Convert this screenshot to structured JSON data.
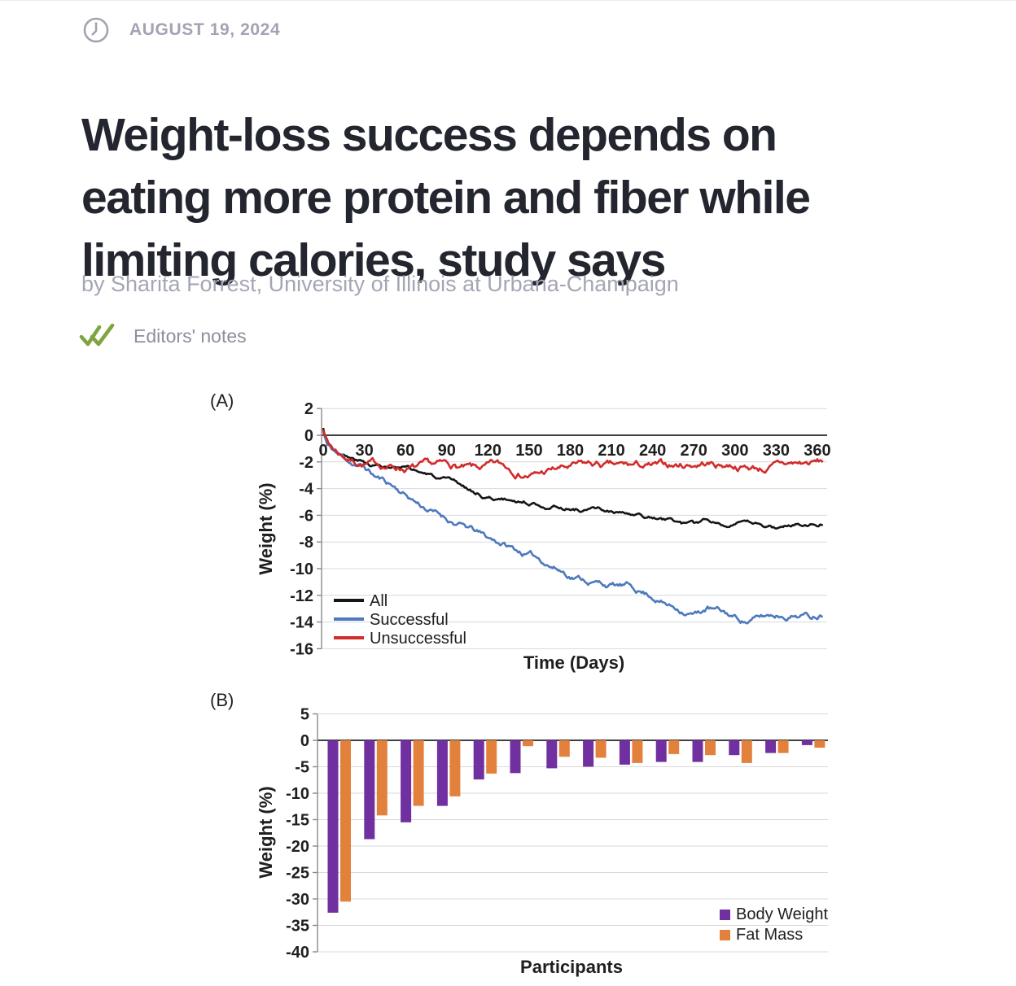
{
  "page": {
    "date": "AUGUST 19, 2024",
    "headline_lines": [
      "Weight-loss success depends on",
      "eating more protein and fiber while",
      "limiting calories, study says"
    ],
    "byline": "by Sharita Forrest, University of Illinois at Urbana-Champaign",
    "editors_notes_label": "Editors' notes"
  },
  "colors": {
    "date_gray": "#a2a3b3",
    "headline": "#23252f",
    "byline_gray": "#a5a6b5",
    "editors_gray": "#8e8f9c",
    "check_green": "#7fa440",
    "gridline": "#d9d9d9",
    "axis_gray": "#8a8a8a",
    "zero_line": "#404040",
    "chart_text": "#1f1f1f"
  },
  "chart_data": [
    {
      "panel": "(A)",
      "type": "line",
      "xlabel": "Time (Days)",
      "ylabel": "Weight (%)",
      "xlim": [
        0,
        364
      ],
      "ylim": [
        -16,
        2
      ],
      "x_ticks": [
        0,
        30,
        60,
        90,
        120,
        150,
        180,
        210,
        240,
        270,
        300,
        330,
        360
      ],
      "y_ticks": [
        2,
        0,
        -2,
        -4,
        -6,
        -8,
        -10,
        -12,
        -14,
        -16
      ],
      "grid": true,
      "legend_position": "bottom-left",
      "series": [
        {
          "name": "All",
          "color": "#151515",
          "noise": 0.12,
          "seed": 3,
          "anchors": [
            [
              0,
              0.5
            ],
            [
              2,
              -0.3
            ],
            [
              8,
              -1.0
            ],
            [
              20,
              -1.7
            ],
            [
              30,
              -2.1
            ],
            [
              45,
              -2.4
            ],
            [
              60,
              -2.7
            ],
            [
              75,
              -3.0
            ],
            [
              90,
              -3.6
            ],
            [
              105,
              -4.2
            ],
            [
              120,
              -4.7
            ],
            [
              140,
              -4.9
            ],
            [
              160,
              -5.1
            ],
            [
              180,
              -5.4
            ],
            [
              200,
              -5.6
            ],
            [
              215,
              -5.9
            ],
            [
              230,
              -6.2
            ],
            [
              245,
              -6.4
            ],
            [
              260,
              -6.6
            ],
            [
              270,
              -6.9
            ],
            [
              278,
              -6.5
            ],
            [
              290,
              -6.6
            ],
            [
              300,
              -6.5
            ],
            [
              310,
              -6.7
            ],
            [
              320,
              -6.8
            ],
            [
              330,
              -7.0
            ],
            [
              338,
              -6.8
            ],
            [
              348,
              -6.6
            ],
            [
              364,
              -6.4
            ]
          ]
        },
        {
          "name": "Successful",
          "color": "#4e79bd",
          "noise": 0.18,
          "seed": 11,
          "anchors": [
            [
              0,
              0.3
            ],
            [
              3,
              -0.8
            ],
            [
              10,
              -1.4
            ],
            [
              20,
              -2.0
            ],
            [
              30,
              -2.4
            ],
            [
              38,
              -3.1
            ],
            [
              50,
              -3.7
            ],
            [
              60,
              -4.4
            ],
            [
              70,
              -5.1
            ],
            [
              80,
              -5.7
            ],
            [
              90,
              -6.2
            ],
            [
              100,
              -6.7
            ],
            [
              110,
              -7.2
            ],
            [
              120,
              -7.8
            ],
            [
              130,
              -8.1
            ],
            [
              140,
              -8.6
            ],
            [
              150,
              -9.0
            ],
            [
              160,
              -9.4
            ],
            [
              170,
              -9.9
            ],
            [
              180,
              -10.4
            ],
            [
              190,
              -10.7
            ],
            [
              200,
              -11.0
            ],
            [
              210,
              -11.2
            ],
            [
              222,
              -11.4
            ],
            [
              232,
              -11.7
            ],
            [
              242,
              -12.1
            ],
            [
              252,
              -12.7
            ],
            [
              262,
              -13.0
            ],
            [
              272,
              -13.3
            ],
            [
              280,
              -12.9
            ],
            [
              290,
              -13.3
            ],
            [
              300,
              -13.7
            ],
            [
              308,
              -13.9
            ],
            [
              318,
              -13.7
            ],
            [
              328,
              -13.5
            ],
            [
              338,
              -13.4
            ],
            [
              348,
              -13.3
            ],
            [
              355,
              -13.5
            ],
            [
              364,
              -13.2
            ]
          ]
        },
        {
          "name": "Unsuccessful",
          "color": "#d22c2c",
          "noise": 0.22,
          "seed": 7,
          "anchors": [
            [
              0,
              0.6
            ],
            [
              4,
              -0.6
            ],
            [
              12,
              -1.3
            ],
            [
              22,
              -1.8
            ],
            [
              35,
              -2.1
            ],
            [
              50,
              -2.3
            ],
            [
              65,
              -2.4
            ],
            [
              80,
              -2.6
            ],
            [
              95,
              -2.5
            ],
            [
              110,
              -2.8
            ],
            [
              125,
              -2.6
            ],
            [
              140,
              -2.7
            ],
            [
              155,
              -2.9
            ],
            [
              170,
              -2.6
            ],
            [
              185,
              -2.5
            ],
            [
              200,
              -2.4
            ],
            [
              215,
              -2.6
            ],
            [
              230,
              -2.5
            ],
            [
              245,
              -2.6
            ],
            [
              258,
              -2.4
            ],
            [
              268,
              -2.2
            ],
            [
              278,
              -2.0
            ],
            [
              288,
              -2.2
            ],
            [
              298,
              -2.1
            ],
            [
              310,
              -2.3
            ],
            [
              322,
              -2.4
            ],
            [
              334,
              -2.3
            ],
            [
              346,
              -2.2
            ],
            [
              364,
              -2.1
            ]
          ]
        }
      ]
    },
    {
      "panel": "(B)",
      "type": "bar",
      "xlabel": "Participants",
      "ylabel": "Weight (%)",
      "ylim": [
        -40,
        5
      ],
      "y_ticks": [
        5,
        0,
        -5,
        -10,
        -15,
        -20,
        -25,
        -30,
        -35,
        -40
      ],
      "grid": true,
      "legend_position": "bottom-right",
      "series": [
        {
          "name": "Body Weight",
          "color": "#7030a0",
          "values": [
            -32.6,
            -18.7,
            -15.5,
            -12.4,
            -7.4,
            -6.2,
            -5.3,
            -5.0,
            -4.6,
            -4.1,
            -4.1,
            -2.8,
            -2.4,
            -0.9
          ]
        },
        {
          "name": "Fat Mass",
          "color": "#e2813c",
          "values": [
            -30.5,
            -14.2,
            -12.4,
            -10.6,
            -6.3,
            -1.1,
            -3.1,
            -3.3,
            -4.3,
            -2.6,
            -2.8,
            -4.3,
            -2.4,
            -1.4
          ]
        }
      ]
    }
  ]
}
